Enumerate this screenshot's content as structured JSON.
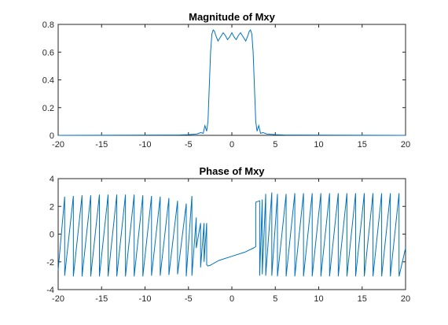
{
  "chart_data": [
    {
      "type": "line",
      "title": "Magnitude of Mxy",
      "xlim": [
        -20,
        20
      ],
      "ylim": [
        0,
        0.8
      ],
      "xticks": [
        -20,
        -15,
        -10,
        -5,
        0,
        5,
        10,
        15,
        20
      ],
      "yticks": [
        0,
        0.2,
        0.4,
        0.6,
        0.8
      ],
      "xtick_labels": [
        "-20",
        "-15",
        "-10",
        "-5",
        "0",
        "5",
        "10",
        "15",
        "20"
      ],
      "ytick_labels": [
        "0",
        "0.2",
        "0.4",
        "0.6",
        "0.8"
      ],
      "grid": false,
      "color": "#0072BD",
      "series": [
        {
          "x": [
            -20,
            -8,
            -6,
            -5,
            -4,
            -3.6,
            -3.3,
            -3.1,
            -2.9,
            -2.75,
            -2.6,
            -2.45,
            -2.3,
            -2.15,
            -2.0,
            -1.85,
            -1.6,
            -1.3,
            -1.0,
            -0.75,
            -0.5,
            -0.25,
            0,
            0.25,
            0.5,
            0.75,
            1.0,
            1.3,
            1.6,
            1.85,
            2.0,
            2.15,
            2.3,
            2.45,
            2.6,
            2.75,
            2.9,
            3.1,
            3.3,
            3.6,
            4.0,
            5.0,
            6.0,
            8.0,
            20
          ],
          "y": [
            0,
            0.002,
            0.003,
            0.005,
            0.01,
            0.02,
            0.015,
            0.07,
            0.03,
            0.1,
            0.35,
            0.6,
            0.73,
            0.76,
            0.75,
            0.72,
            0.68,
            0.71,
            0.74,
            0.72,
            0.69,
            0.71,
            0.74,
            0.71,
            0.69,
            0.72,
            0.74,
            0.71,
            0.68,
            0.72,
            0.75,
            0.76,
            0.73,
            0.6,
            0.35,
            0.1,
            0.03,
            0.07,
            0.015,
            0.02,
            0.01,
            0.005,
            0.003,
            0.002,
            0
          ]
        }
      ]
    },
    {
      "type": "line",
      "title": "Phase of Mxy",
      "xlim": [
        -20,
        20
      ],
      "ylim": [
        -4,
        4
      ],
      "xticks": [
        -20,
        -15,
        -10,
        -5,
        0,
        5,
        10,
        15,
        20
      ],
      "yticks": [
        -4,
        -2,
        0,
        2,
        4
      ],
      "xtick_labels": [
        "-20",
        "-15",
        "-10",
        "-5",
        "0",
        "5",
        "10",
        "15",
        "20"
      ],
      "ytick_labels": [
        "-4",
        "-2",
        "0",
        "2",
        "4"
      ],
      "grid": false,
      "color": "#0072BD",
      "series": [
        {
          "x": [
            -20,
            -19.25,
            -19.25,
            -18.25,
            -18.25,
            -17.25,
            -17.25,
            -16.25,
            -16.25,
            -15.25,
            -15.25,
            -14.25,
            -14.25,
            -13.25,
            -13.25,
            -12.25,
            -12.25,
            -11.25,
            -11.25,
            -10.25,
            -10.25,
            -9.25,
            -9.25,
            -8.25,
            -8.25,
            -7.25,
            -7.25,
            -6.25,
            -6.25,
            -5.25,
            -5.25,
            -4.6,
            -4.6,
            -4.1,
            -4.1,
            -3.6,
            -3.6,
            -3.2,
            -3.2,
            -2.9,
            -2.9,
            -2.75,
            -2.5,
            -1.5,
            0,
            1.5,
            2.5,
            2.75,
            2.75,
            3.2,
            3.2,
            3.5,
            3.5,
            3.9,
            3.9,
            4.6,
            4.6,
            5.25,
            5.25,
            6.25,
            6.25,
            7.25,
            7.25,
            8.25,
            8.25,
            9.25,
            9.25,
            10.25,
            10.25,
            11.25,
            11.25,
            12.25,
            12.25,
            13.25,
            13.25,
            14.25,
            14.25,
            15.25,
            15.25,
            16.25,
            16.25,
            17.25,
            17.25,
            18.25,
            18.25,
            19.25,
            19.25,
            20
          ],
          "y": [
            -2.6,
            2.7,
            -3.0,
            2.75,
            -3.05,
            2.8,
            -3.05,
            2.8,
            -3.05,
            2.85,
            -3.05,
            2.85,
            -3.05,
            2.85,
            -3.05,
            2.85,
            -3.05,
            2.85,
            -3.05,
            2.8,
            -3.05,
            2.75,
            -3.0,
            2.7,
            -3.0,
            2.6,
            -2.95,
            2.4,
            -2.9,
            2.2,
            -3.05,
            2.75,
            -3.0,
            1.2,
            -1.0,
            0.8,
            -2.4,
            0.8,
            -2.0,
            0.8,
            -2.2,
            -2.3,
            -2.25,
            -1.9,
            -1.6,
            -1.3,
            -1.0,
            -0.9,
            2.3,
            2.4,
            -3.0,
            2.5,
            -2.9,
            2.9,
            -3.0,
            3.0,
            -3.0,
            2.9,
            -3.05,
            2.9,
            -3.05,
            2.95,
            -3.05,
            2.95,
            -3.05,
            2.95,
            -3.05,
            2.95,
            -3.05,
            2.95,
            -3.05,
            2.95,
            -3.05,
            2.95,
            -3.05,
            2.95,
            -3.05,
            2.95,
            -3.05,
            2.95,
            -3.05,
            2.95,
            -3.05,
            2.95,
            -3.05,
            2.95,
            -3.05,
            -1.0
          ]
        }
      ]
    }
  ]
}
